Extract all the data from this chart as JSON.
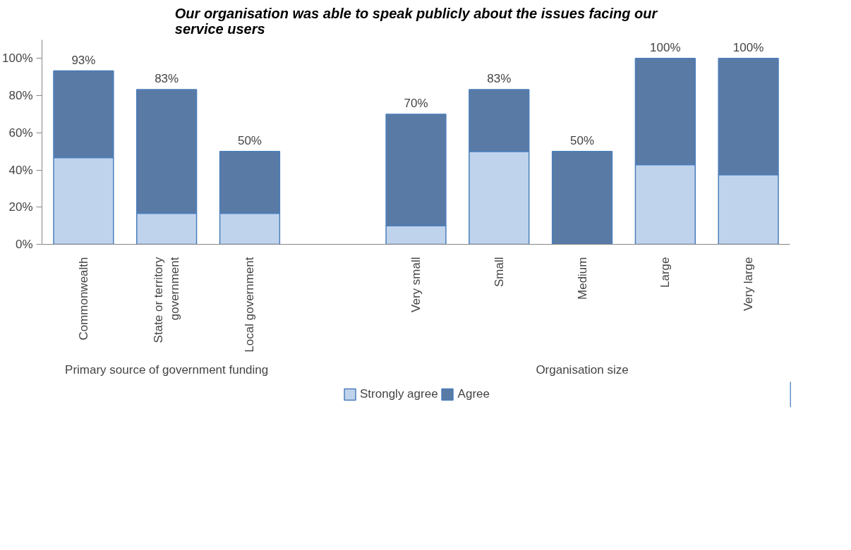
{
  "chart_data": {
    "type": "bar",
    "stacked": true,
    "title": "Our organisation was able to speak publicly about the issues facing our service users",
    "categories": [
      "Commonwealth",
      "State or territory government",
      "Local government",
      null,
      "Very small",
      "Small",
      "Medium",
      "Large",
      "Very large"
    ],
    "series": [
      {
        "name": "Strongly agree",
        "color": "#c0d3ec",
        "values": [
          46.7,
          16.7,
          16.7,
          null,
          10,
          50,
          0,
          42.9,
          37.5
        ]
      },
      {
        "name": "Agree",
        "color": "#5a7aa6",
        "values": [
          46.6,
          66.6,
          33.3,
          null,
          60,
          33.3,
          50,
          57.1,
          62.5
        ]
      }
    ],
    "totals": [
      "93%",
      "83%",
      "50%",
      null,
      "70%",
      "83%",
      "50%",
      "100%",
      "100%"
    ],
    "annotations": [
      "Primary source of government funding",
      "Organisation size"
    ],
    "ylim": [
      0,
      110
    ],
    "yticks": [
      {
        "value": 0,
        "label": "0%"
      },
      {
        "value": 20,
        "label": "20%"
      },
      {
        "value": 40,
        "label": "40%"
      },
      {
        "value": 60,
        "label": "60%"
      },
      {
        "value": 80,
        "label": "80%"
      },
      {
        "value": 100,
        "label": "100%"
      }
    ],
    "grid": false,
    "legend": "bottom"
  }
}
